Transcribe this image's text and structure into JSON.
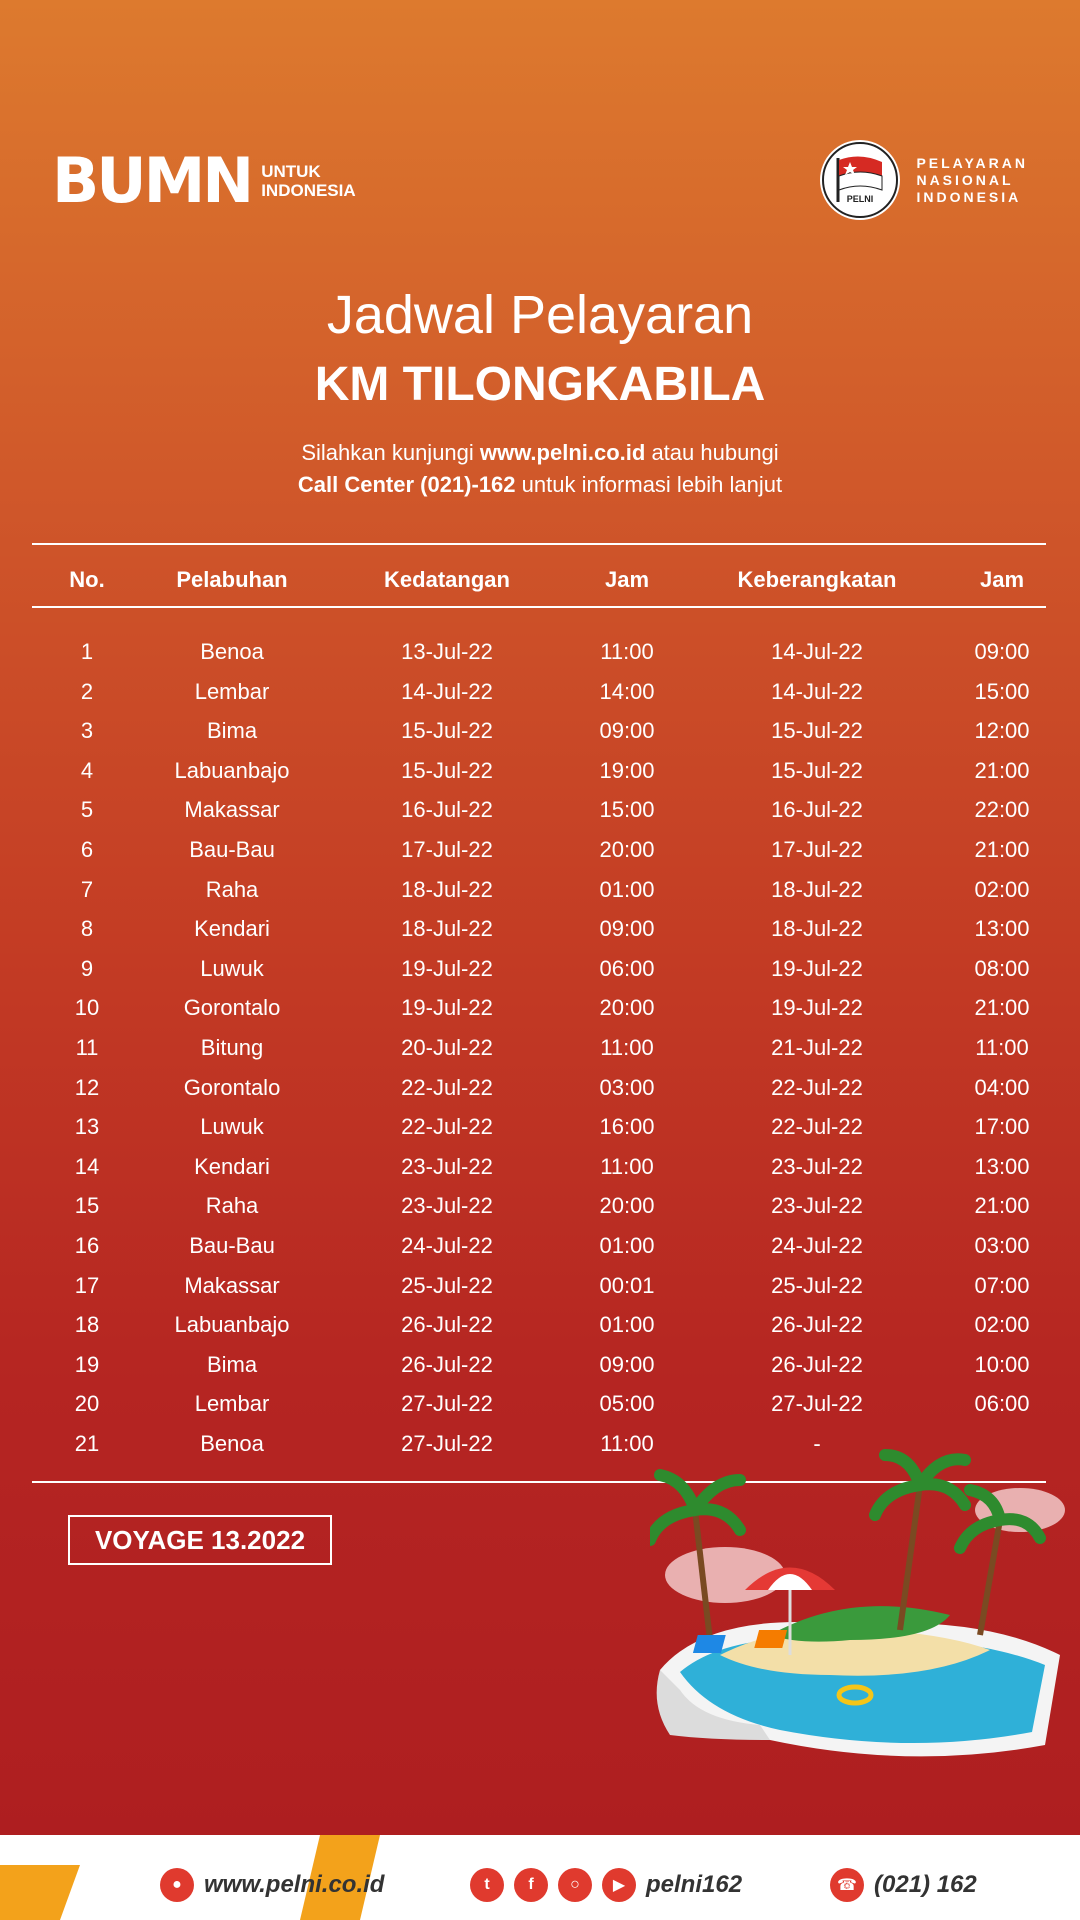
{
  "logos": {
    "bumn_mark": "BUMN",
    "bumn_line1": "UNTUK",
    "bumn_line2": "INDONESIA",
    "pelni_emblem_text": "PELNI",
    "pelni_line1": "PELAYARAN",
    "pelni_line2": "NASIONAL",
    "pelni_line3": "INDONESIA"
  },
  "header": {
    "title": "Jadwal Pelayaran",
    "ship_name": "KM TILONGKABILA",
    "info_line1_pre": "Silahkan kunjungi ",
    "info_line1_link": "www.pelni.co.id",
    "info_line1_post": " atau hubungi",
    "info_line2_bold": "Call Center (021)-162",
    "info_line2_post": " untuk informasi lebih lanjut"
  },
  "table": {
    "columns": [
      "No.",
      "Pelabuhan",
      "Kedatangan",
      "Jam",
      "Keberangkatan",
      "Jam"
    ],
    "rows": [
      [
        "1",
        "Benoa",
        "13-Jul-22",
        "11:00",
        "14-Jul-22",
        "09:00"
      ],
      [
        "2",
        "Lembar",
        "14-Jul-22",
        "14:00",
        "14-Jul-22",
        "15:00"
      ],
      [
        "3",
        "Bima",
        "15-Jul-22",
        "09:00",
        "15-Jul-22",
        "12:00"
      ],
      [
        "4",
        "Labuanbajo",
        "15-Jul-22",
        "19:00",
        "15-Jul-22",
        "21:00"
      ],
      [
        "5",
        "Makassar",
        "16-Jul-22",
        "15:00",
        "16-Jul-22",
        "22:00"
      ],
      [
        "6",
        "Bau-Bau",
        "17-Jul-22",
        "20:00",
        "17-Jul-22",
        "21:00"
      ],
      [
        "7",
        "Raha",
        "18-Jul-22",
        "01:00",
        "18-Jul-22",
        "02:00"
      ],
      [
        "8",
        "Kendari",
        "18-Jul-22",
        "09:00",
        "18-Jul-22",
        "13:00"
      ],
      [
        "9",
        "Luwuk",
        "19-Jul-22",
        "06:00",
        "19-Jul-22",
        "08:00"
      ],
      [
        "10",
        "Gorontalo",
        "19-Jul-22",
        "20:00",
        "19-Jul-22",
        "21:00"
      ],
      [
        "11",
        "Bitung",
        "20-Jul-22",
        "11:00",
        "21-Jul-22",
        "11:00"
      ],
      [
        "12",
        "Gorontalo",
        "22-Jul-22",
        "03:00",
        "22-Jul-22",
        "04:00"
      ],
      [
        "13",
        "Luwuk",
        "22-Jul-22",
        "16:00",
        "22-Jul-22",
        "17:00"
      ],
      [
        "14",
        "Kendari",
        "23-Jul-22",
        "11:00",
        "23-Jul-22",
        "13:00"
      ],
      [
        "15",
        "Raha",
        "23-Jul-22",
        "20:00",
        "23-Jul-22",
        "21:00"
      ],
      [
        "16",
        "Bau-Bau",
        "24-Jul-22",
        "01:00",
        "24-Jul-22",
        "03:00"
      ],
      [
        "17",
        "Makassar",
        "25-Jul-22",
        "00:01",
        "25-Jul-22",
        "07:00"
      ],
      [
        "18",
        "Labuanbajo",
        "26-Jul-22",
        "01:00",
        "26-Jul-22",
        "02:00"
      ],
      [
        "19",
        "Bima",
        "26-Jul-22",
        "09:00",
        "26-Jul-22",
        "10:00"
      ],
      [
        "20",
        "Lembar",
        "27-Jul-22",
        "05:00",
        "27-Jul-22",
        "06:00"
      ],
      [
        "21",
        "Benoa",
        "27-Jul-22",
        "11:00",
        "-",
        ""
      ]
    ]
  },
  "voyage": "VOYAGE 13.2022",
  "footer": {
    "website": "www.pelni.co.id",
    "social_handle": "pelni162",
    "phone": "(021) 162",
    "icons": [
      "globe-icon",
      "twitter-icon",
      "facebook-icon",
      "instagram-icon",
      "youtube-icon",
      "phone-icon"
    ]
  },
  "colors": {
    "bg_top": "#dd7a2e",
    "bg_bottom": "#ad1d20",
    "icon_red": "#e03a2e",
    "footer_stripe": "#f3a21b"
  }
}
